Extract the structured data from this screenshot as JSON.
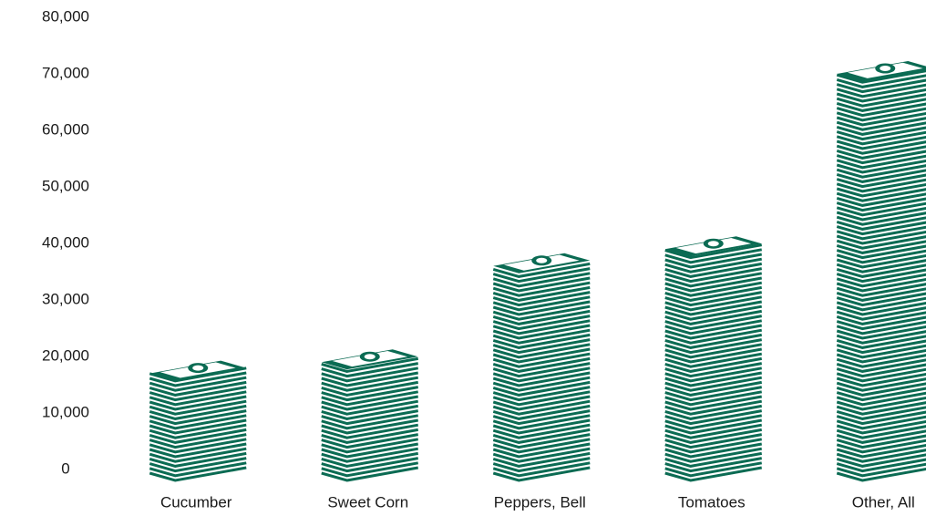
{
  "chart_data": {
    "type": "money-stack",
    "categories": [
      "Cucumber",
      "Sweet Corn",
      "Peppers, Bell",
      "Tomatoes",
      "Other, All"
    ],
    "values": [
      17000,
      19000,
      36000,
      39000,
      70000
    ],
    "color": "#0b6b53",
    "ylim": [
      0,
      80000
    ],
    "yticks": [
      0,
      {
        "value": 10000,
        "label": "10,000"
      },
      {
        "value": 20000,
        "label": "20,000"
      },
      {
        "value": 30000,
        "label": "30,000"
      },
      {
        "value": 40000,
        "label": "40,000"
      },
      {
        "value": 50000,
        "label": "50,000"
      },
      {
        "value": 60000,
        "label": "60,000"
      },
      {
        "value": 70000,
        "label": "70,000"
      },
      {
        "value": 80000,
        "label": "80,000"
      }
    ],
    "grid": false
  }
}
